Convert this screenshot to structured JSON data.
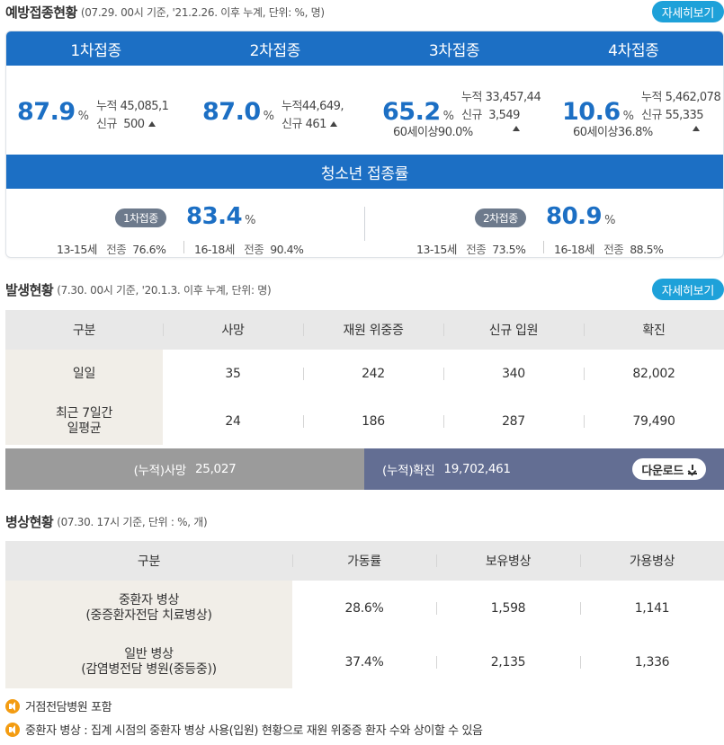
{
  "vaccination": {
    "title": "예방접종현황",
    "note": "(07.29. 00시 기준, '21.2.26. 이후 누계, 단위: %, 명)",
    "detail_label": "자세히보기",
    "doses": [
      {
        "tab": "1차접종",
        "pct": "87.9",
        "unit": "%",
        "cum_label": "누적",
        "cum_value": "45,085,1",
        "new_label": "신규",
        "new_value": "500",
        "sub": ""
      },
      {
        "tab": "2차접종",
        "pct": "87.0",
        "unit": "%",
        "cum_label": "누적",
        "cum_value": "44,649,",
        "new_label": "신규",
        "new_value": "461",
        "sub": ""
      },
      {
        "tab": "3차접종",
        "pct": "65.2",
        "unit": "%",
        "cum_label": "누적",
        "cum_value": "33,457,44",
        "new_label": "신규",
        "new_value": "3,549",
        "sub": "60세이상90.0%"
      },
      {
        "tab": "4차접종",
        "pct": "10.6",
        "unit": "%",
        "cum_label": "누적",
        "cum_value": "5,462,078",
        "new_label": "신규",
        "new_value": "55,335",
        "sub": "60세이상36.8%"
      }
    ],
    "teen_title": "청소년 접종률",
    "teen": [
      {
        "pill": "1차접종",
        "pct": "83.4",
        "unit": "%",
        "a_age": "13-15세",
        "a_label": "전종",
        "a_val": "76.6%",
        "b_age": "16-18세",
        "b_label": "전종",
        "b_val": "90.4%"
      },
      {
        "pill": "2차접종",
        "pct": "80.9",
        "unit": "%",
        "a_age": "13-15세",
        "a_label": "전종",
        "a_val": "73.5%",
        "b_age": "16-18세",
        "b_label": "전종",
        "b_val": "88.5%"
      }
    ]
  },
  "outbreak": {
    "title": "발생현황",
    "note": "(7.30. 00시 기준, '20.1.3. 이후 누계, 단위: 명)",
    "detail_label": "자세히보기",
    "headers": [
      "구분",
      "사망",
      "재원 위중증",
      "신규 입원",
      "확진"
    ],
    "rows": [
      {
        "label": "일일",
        "cells": [
          "35",
          "242",
          "340",
          "82,002"
        ]
      },
      {
        "label_1": "최근 7일간",
        "label_2": "일평균",
        "cells": [
          "24",
          "186",
          "287",
          "79,490"
        ]
      }
    ],
    "cum_death_label": "(누적)사망",
    "cum_death_value": "25,027",
    "cum_conf_label": "(누적)확진",
    "cum_conf_value": "19,702,461",
    "download_label": "다운로드"
  },
  "beds": {
    "title": "병상현황",
    "note": "(07.30. 17시 기준, 단위 : %, 개)",
    "headers": [
      "구분",
      "가동률",
      "보유병상",
      "가용병상"
    ],
    "rows": [
      {
        "label_1": "중환자 병상",
        "label_2": "(중증환자전담 치료병상)",
        "cells": [
          "28.6%",
          "1,598",
          "1,141"
        ]
      },
      {
        "label_1": "일반 병상",
        "label_2": "(감염병전담 병원(중등중))",
        "cells": [
          "37.4%",
          "2,135",
          "1,336"
        ]
      }
    ]
  },
  "notes": [
    "거점전담병원 포함",
    "중환자 병상 : 집계 시점의 중환자 병상 사용(입원) 현황으로 재원 위중증 환자 수와 상이할 수 있음"
  ],
  "colors": {
    "primary_blue": "#1c6fc4",
    "detail_button": "#1ea1d9",
    "cum_death_bg": "#9b9b9b",
    "cum_conf_bg": "#636e93",
    "note_icon": "#f39c12"
  },
  "icons": {
    "note": "speaker-icon",
    "download": "download-icon",
    "new_trend": "triangle-up-icon"
  }
}
